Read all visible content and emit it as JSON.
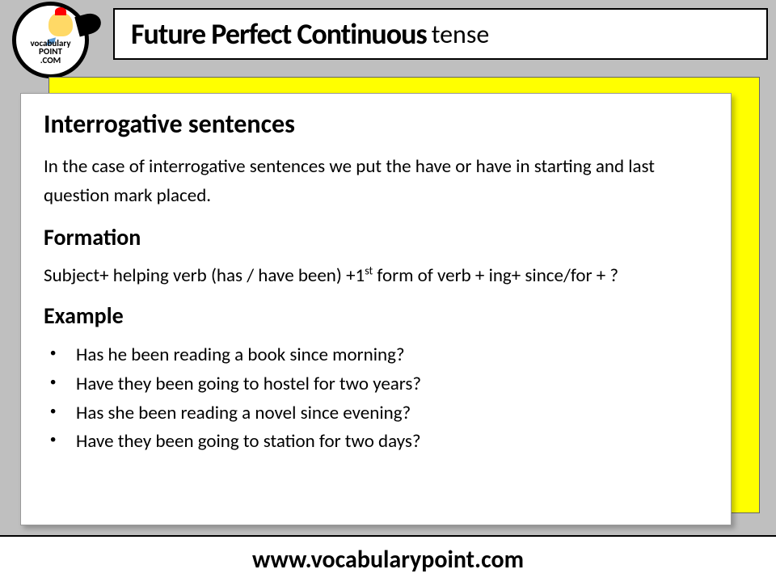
{
  "header": {
    "title": "Future Perfect Continuous",
    "suffix": "tense"
  },
  "logo": {
    "line1": "vocabulary",
    "line2": "POINT",
    "line3": ".COM"
  },
  "content": {
    "heading1": "Interrogative sentences",
    "intro": "In the case of interrogative sentences we put the have or have in starting and last question mark placed.",
    "heading2": "Formation",
    "formula_prefix": "Subject+ helping verb (has / have been) +1",
    "formula_sup": "st",
    "formula_suffix": " form of verb + ing+ since/for + ?",
    "heading3": "Example",
    "examples": [
      "Has he been reading a book since morning?",
      "Have they been going to hostel for two years?",
      "Has she been reading a novel since evening?",
      "Have they been going to station for two days?"
    ]
  },
  "footer": {
    "url": "www.vocabularypoint.com"
  },
  "colors": {
    "background": "#bfbfbf",
    "panel_accent": "#ffff00",
    "content_bg": "#ffffff"
  }
}
